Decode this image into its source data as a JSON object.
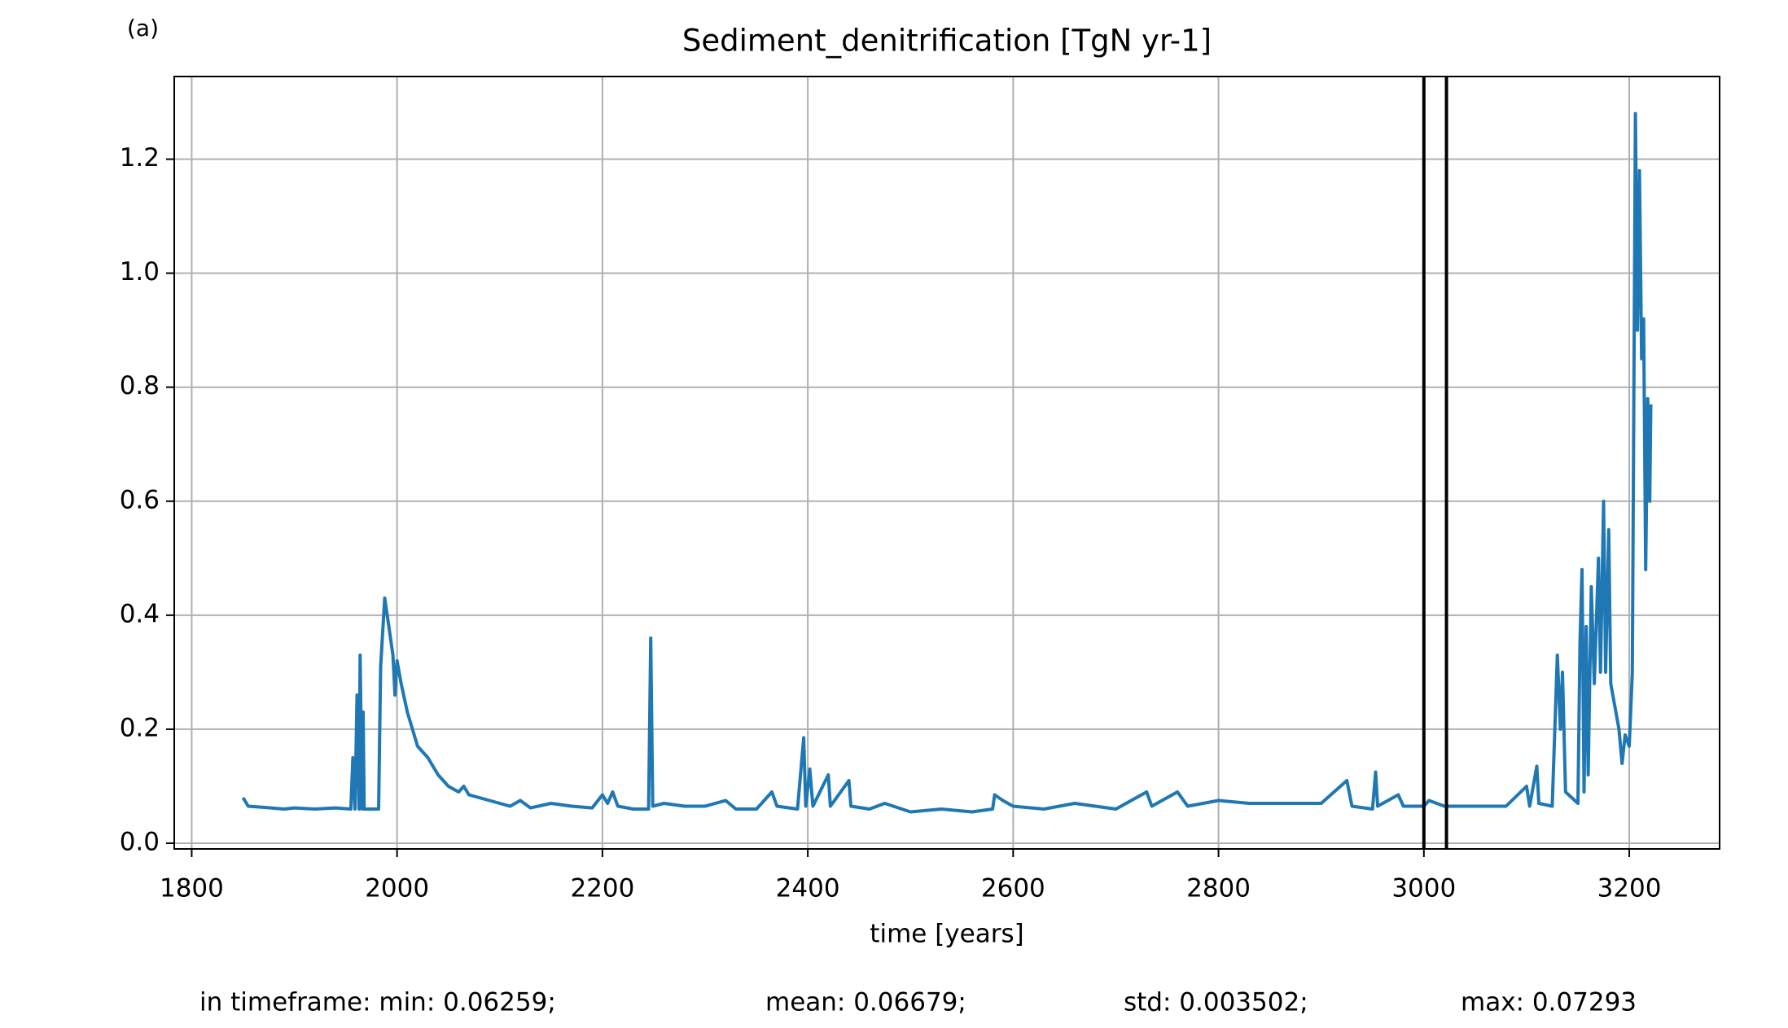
{
  "chart_data": {
    "type": "line",
    "panel_label": "(a)",
    "title": "Sediment_denitrification [TgN yr-1]",
    "x_label": "time [years]",
    "stats": [
      "in timeframe: min: 0.06259;",
      "mean: 0.06679;",
      "std: 0.003502;",
      "max: 0.07293"
    ],
    "xlim": [
      1783,
      3288
    ],
    "ylim": [
      -0.01,
      1.345
    ],
    "xticks": [
      1800,
      2000,
      2200,
      2400,
      2600,
      2800,
      3000,
      3200
    ],
    "yticks": [
      {
        "value": 0,
        "label": "0.0"
      },
      0.2,
      0.4,
      0.6,
      0.8,
      {
        "value": 1,
        "label": "1.0"
      },
      1.2
    ],
    "grid": true,
    "vlines": [
      3000,
      3022
    ],
    "vline_color": "#000000",
    "series": [
      {
        "color": "#1f77b4",
        "x": [
          1850,
          1855,
          1870,
          1890,
          1900,
          1920,
          1940,
          1955,
          1957,
          1959,
          1961,
          1963,
          1964,
          1966,
          1967,
          1968,
          1980,
          1982,
          1984,
          1988,
          1992,
          1996,
          1998,
          2000,
          2004,
          2010,
          2020,
          2030,
          2040,
          2050,
          2060,
          2065,
          2070,
          2080,
          2090,
          2100,
          2110,
          2120,
          2130,
          2150,
          2170,
          2190,
          2200,
          2205,
          2210,
          2215,
          2230,
          2245,
          2247,
          2249,
          2260,
          2280,
          2300,
          2320,
          2330,
          2350,
          2365,
          2370,
          2390,
          2396,
          2398,
          2402,
          2405,
          2420,
          2422,
          2440,
          2442,
          2460,
          2475,
          2500,
          2530,
          2560,
          2580,
          2582,
          2590,
          2600,
          2630,
          2660,
          2700,
          2730,
          2735,
          2760,
          2770,
          2800,
          2830,
          2870,
          2900,
          2925,
          2930,
          2950,
          2953,
          2955,
          2975,
          2980,
          3000,
          3005,
          3020,
          3050,
          3080,
          3100,
          3103,
          3110,
          3112,
          3125,
          3130,
          3133,
          3135,
          3138,
          3150,
          3152,
          3154,
          3156,
          3158,
          3160,
          3163,
          3166,
          3170,
          3172,
          3175,
          3177,
          3180,
          3182,
          3185,
          3190,
          3193,
          3196,
          3200,
          3203,
          3206,
          3208,
          3210,
          3212,
          3214,
          3216,
          3218,
          3220,
          3221
        ],
        "values": [
          0.08,
          0.065,
          0.063,
          0.06,
          0.062,
          0.06,
          0.062,
          0.06,
          0.15,
          0.06,
          0.26,
          0.06,
          0.33,
          0.06,
          0.23,
          0.06,
          0.06,
          0.06,
          0.31,
          0.43,
          0.38,
          0.33,
          0.26,
          0.32,
          0.28,
          0.23,
          0.17,
          0.15,
          0.12,
          0.1,
          0.09,
          0.1,
          0.085,
          0.08,
          0.075,
          0.07,
          0.065,
          0.075,
          0.062,
          0.07,
          0.065,
          0.062,
          0.085,
          0.07,
          0.09,
          0.065,
          0.06,
          0.06,
          0.36,
          0.065,
          0.07,
          0.065,
          0.065,
          0.075,
          0.06,
          0.06,
          0.09,
          0.065,
          0.06,
          0.185,
          0.065,
          0.13,
          0.065,
          0.12,
          0.065,
          0.11,
          0.065,
          0.06,
          0.07,
          0.055,
          0.06,
          0.055,
          0.06,
          0.085,
          0.075,
          0.065,
          0.06,
          0.07,
          0.06,
          0.09,
          0.065,
          0.09,
          0.065,
          0.075,
          0.07,
          0.07,
          0.07,
          0.11,
          0.065,
          0.06,
          0.125,
          0.065,
          0.085,
          0.065,
          0.065,
          0.075,
          0.065,
          0.065,
          0.065,
          0.1,
          0.065,
          0.135,
          0.07,
          0.065,
          0.33,
          0.2,
          0.3,
          0.09,
          0.07,
          0.35,
          0.48,
          0.09,
          0.38,
          0.12,
          0.45,
          0.28,
          0.5,
          0.3,
          0.6,
          0.3,
          0.55,
          0.28,
          0.25,
          0.2,
          0.14,
          0.19,
          0.17,
          0.3,
          1.28,
          0.9,
          1.18,
          0.85,
          0.92,
          0.48,
          0.78,
          0.6,
          0.77
        ]
      }
    ]
  }
}
